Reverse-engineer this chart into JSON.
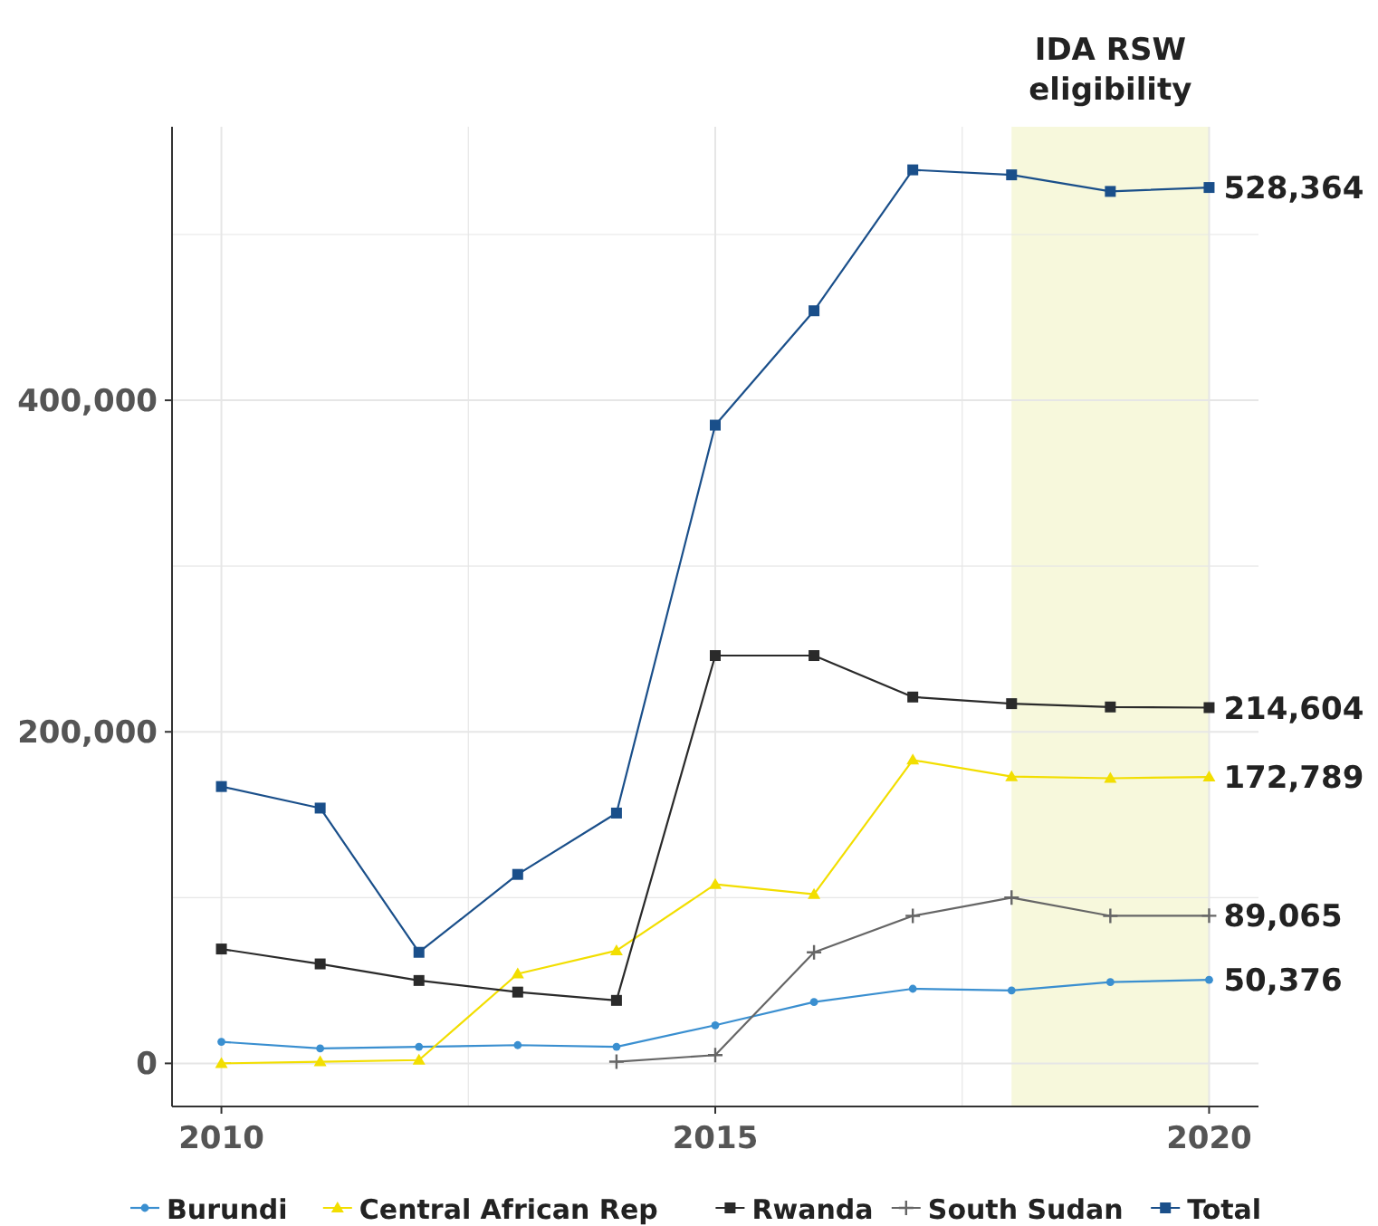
{
  "chart_data": {
    "type": "line",
    "x": [
      2010,
      2011,
      2012,
      2013,
      2014,
      2015,
      2016,
      2017,
      2018,
      2019,
      2020
    ],
    "xlim": [
      2009.5,
      2020.5
    ],
    "xticks": [
      2010,
      {
        "value": 2012.5,
        "label": null
      },
      2015,
      {
        "value": 2017.5,
        "label": null
      },
      2020
    ],
    "ylim": [
      -26000,
      565000
    ],
    "yticks": [
      {
        "value": 0,
        "label": "0"
      },
      {
        "value": 100000,
        "label": null
      },
      {
        "value": 200000,
        "label": "200,000"
      },
      {
        "value": 300000,
        "label": null
      },
      {
        "value": 400000,
        "label": "400,000"
      },
      {
        "value": 500000,
        "label": null
      }
    ],
    "grid": true,
    "legend": "bottom",
    "line_style": "solid",
    "bands": [
      {
        "axis": "x",
        "from": 2018,
        "to": 2020,
        "label": "IDA RSW eligibility",
        "color": "#f7f8dc"
      }
    ],
    "series": [
      {
        "name": "Burundi",
        "color": "#3a8fd0",
        "marker": "circle",
        "values": [
          13000,
          9000,
          10000,
          11000,
          10000,
          23000,
          37000,
          45000,
          44000,
          49000,
          50376
        ],
        "value_labels": [
          null,
          null,
          null,
          null,
          null,
          null,
          null,
          null,
          null,
          null,
          "50,376"
        ]
      },
      {
        "name": "Central African Rep",
        "color": "#f2de00",
        "marker": "triangle",
        "values": [
          0,
          1000,
          2000,
          54000,
          68000,
          108000,
          102000,
          183000,
          173000,
          172000,
          172789
        ],
        "value_labels": [
          null,
          null,
          null,
          null,
          null,
          null,
          null,
          null,
          null,
          null,
          "172,789"
        ]
      },
      {
        "name": "Rwanda",
        "color": "#2a2a2a",
        "marker": "square",
        "values": [
          69000,
          60000,
          50000,
          43000,
          38000,
          246000,
          246000,
          221000,
          217000,
          215000,
          214604
        ],
        "value_labels": [
          null,
          null,
          null,
          null,
          null,
          null,
          null,
          null,
          null,
          null,
          "214,604"
        ]
      },
      {
        "name": "South Sudan",
        "color": "#666666",
        "marker": "cross",
        "values": [
          null,
          null,
          null,
          null,
          1000,
          5000,
          67000,
          89000,
          100000,
          89000,
          89065
        ],
        "value_labels": [
          null,
          null,
          null,
          null,
          null,
          null,
          null,
          null,
          null,
          null,
          "89,065"
        ]
      },
      {
        "name": "Total",
        "color": "#1a4f8a",
        "marker": "square",
        "values": [
          167000,
          154000,
          67000,
          114000,
          151000,
          385000,
          454000,
          539000,
          536000,
          526000,
          528364
        ],
        "value_labels": [
          null,
          null,
          null,
          null,
          null,
          null,
          null,
          null,
          null,
          null,
          "528,364"
        ]
      }
    ]
  }
}
